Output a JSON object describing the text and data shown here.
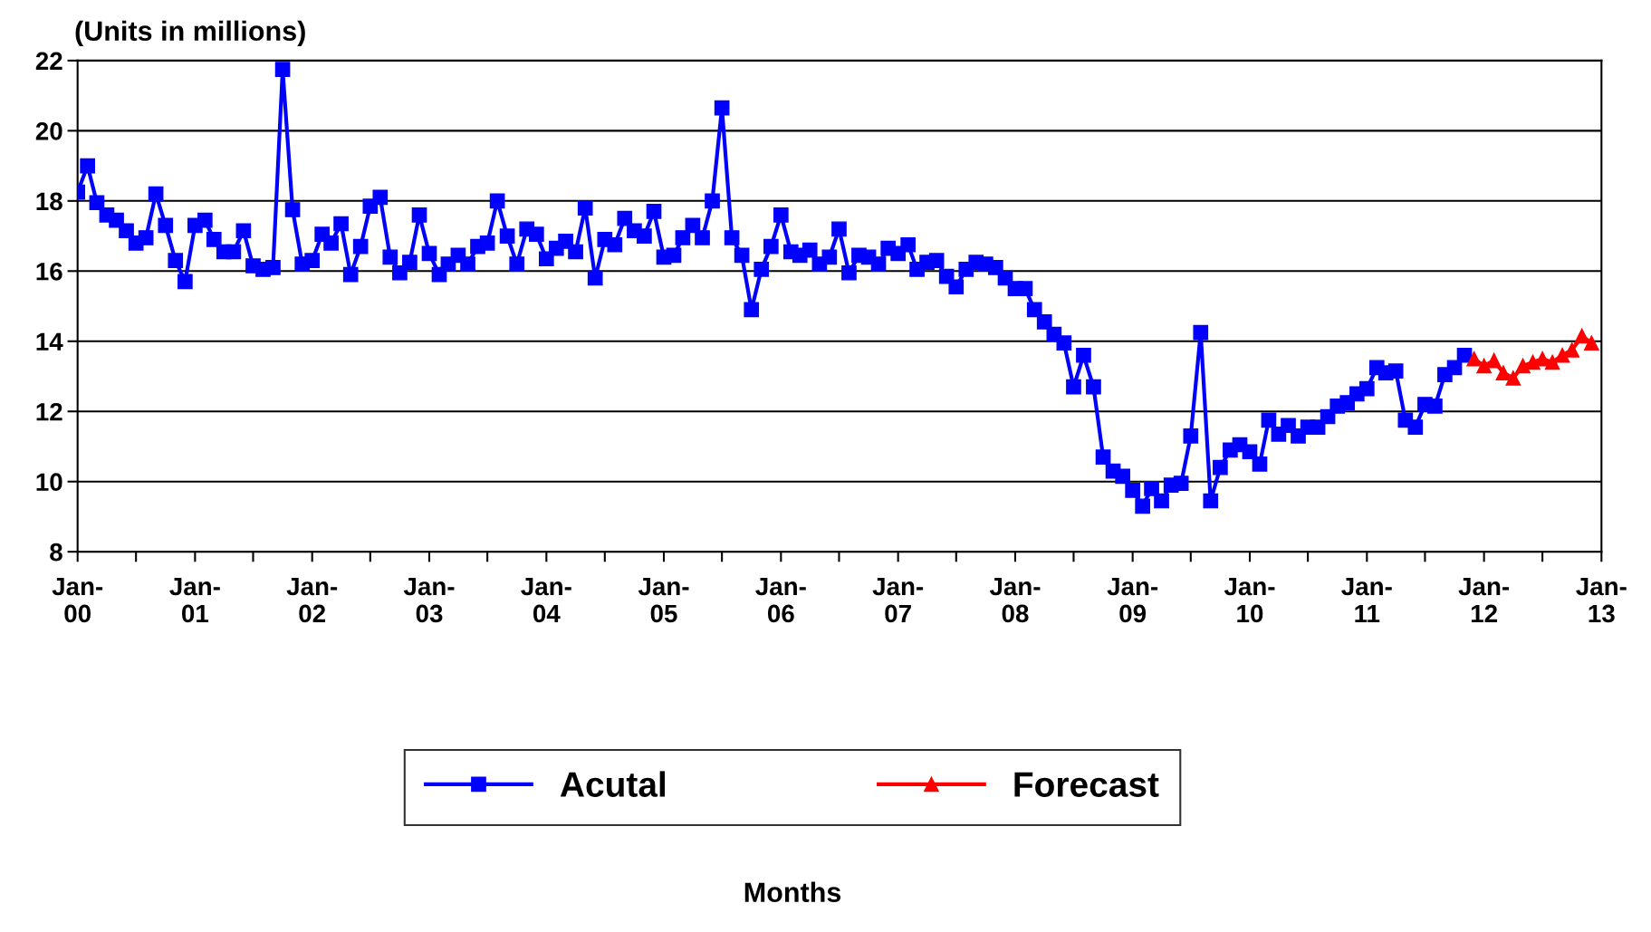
{
  "chart_data": {
    "type": "line",
    "ylabel": "(Units in millions)",
    "annotations": [
      "Months"
    ],
    "xlim": [
      "2000-01",
      "2013-01"
    ],
    "ylim": [
      8,
      22
    ],
    "yticks": [
      8,
      10,
      12,
      14,
      16,
      18,
      20,
      22
    ],
    "xticks": [
      {
        "value": "2000-01",
        "label": "Jan-\n00"
      },
      {
        "value": "2000-07",
        "label": null
      },
      {
        "value": "2001-01",
        "label": "Jan-\n01"
      },
      {
        "value": "2001-07",
        "label": null
      },
      {
        "value": "2002-01",
        "label": "Jan-\n02"
      },
      {
        "value": "2002-07",
        "label": null
      },
      {
        "value": "2003-01",
        "label": "Jan-\n03"
      },
      {
        "value": "2003-07",
        "label": null
      },
      {
        "value": "2004-01",
        "label": "Jan-\n04"
      },
      {
        "value": "2004-07",
        "label": null
      },
      {
        "value": "2005-01",
        "label": "Jan-\n05"
      },
      {
        "value": "2005-07",
        "label": null
      },
      {
        "value": "2006-01",
        "label": "Jan-\n06"
      },
      {
        "value": "2006-07",
        "label": null
      },
      {
        "value": "2007-01",
        "label": "Jan-\n07"
      },
      {
        "value": "2007-07",
        "label": null
      },
      {
        "value": "2008-01",
        "label": "Jan-\n08"
      },
      {
        "value": "2008-07",
        "label": null
      },
      {
        "value": "2009-01",
        "label": "Jan-\n09"
      },
      {
        "value": "2009-07",
        "label": null
      },
      {
        "value": "2010-01",
        "label": "Jan-\n10"
      },
      {
        "value": "2010-07",
        "label": null
      },
      {
        "value": "2011-01",
        "label": "Jan-\n11"
      },
      {
        "value": "2011-07",
        "label": null
      },
      {
        "value": "2012-01",
        "label": "Jan-\n12"
      },
      {
        "value": "2012-07",
        "label": null
      },
      {
        "value": "2013-01",
        "label": "Jan-\n13"
      }
    ],
    "grid": "y",
    "legend": "bottom",
    "series": [
      {
        "name": "Acutal",
        "color": "#0000ff",
        "marker": "square",
        "x": [
          "2000-01",
          "2000-02",
          "2000-03",
          "2000-04",
          "2000-05",
          "2000-06",
          "2000-07",
          "2000-08",
          "2000-09",
          "2000-10",
          "2000-11",
          "2000-12",
          "2001-01",
          "2001-02",
          "2001-03",
          "2001-04",
          "2001-05",
          "2001-06",
          "2001-07",
          "2001-08",
          "2001-09",
          "2001-10",
          "2001-11",
          "2001-12",
          "2002-01",
          "2002-02",
          "2002-03",
          "2002-04",
          "2002-05",
          "2002-06",
          "2002-07",
          "2002-08",
          "2002-09",
          "2002-10",
          "2002-11",
          "2002-12",
          "2003-01",
          "2003-02",
          "2003-03",
          "2003-04",
          "2003-05",
          "2003-06",
          "2003-07",
          "2003-08",
          "2003-09",
          "2003-10",
          "2003-11",
          "2003-12",
          "2004-01",
          "2004-02",
          "2004-03",
          "2004-04",
          "2004-05",
          "2004-06",
          "2004-07",
          "2004-08",
          "2004-09",
          "2004-10",
          "2004-11",
          "2004-12",
          "2005-01",
          "2005-02",
          "2005-03",
          "2005-04",
          "2005-05",
          "2005-06",
          "2005-07",
          "2005-08",
          "2005-09",
          "2005-10",
          "2005-11",
          "2005-12",
          "2006-01",
          "2006-02",
          "2006-03",
          "2006-04",
          "2006-05",
          "2006-06",
          "2006-07",
          "2006-08",
          "2006-09",
          "2006-10",
          "2006-11",
          "2006-12",
          "2007-01",
          "2007-02",
          "2007-03",
          "2007-04",
          "2007-05",
          "2007-06",
          "2007-07",
          "2007-08",
          "2007-09",
          "2007-10",
          "2007-11",
          "2007-12",
          "2008-01",
          "2008-02",
          "2008-03",
          "2008-04",
          "2008-05",
          "2008-06",
          "2008-07",
          "2008-08",
          "2008-09",
          "2008-10",
          "2008-11",
          "2008-12",
          "2009-01",
          "2009-02",
          "2009-03",
          "2009-04",
          "2009-05",
          "2009-06",
          "2009-07",
          "2009-08",
          "2009-09",
          "2009-10",
          "2009-11",
          "2009-12",
          "2010-01",
          "2010-02",
          "2010-03",
          "2010-04",
          "2010-05",
          "2010-06",
          "2010-07",
          "2010-08",
          "2010-09",
          "2010-10",
          "2010-11",
          "2010-12",
          "2011-01",
          "2011-02",
          "2011-03",
          "2011-04",
          "2011-05",
          "2011-06",
          "2011-07",
          "2011-08",
          "2011-09",
          "2011-10",
          "2011-11"
        ],
        "values": [
          18.25,
          19.0,
          17.95,
          17.6,
          17.45,
          17.15,
          16.8,
          16.95,
          18.2,
          17.3,
          16.3,
          15.7,
          17.3,
          17.45,
          16.9,
          16.55,
          16.55,
          17.15,
          16.15,
          16.05,
          16.1,
          21.75,
          17.75,
          16.2,
          16.3,
          17.05,
          16.8,
          17.35,
          15.9,
          16.7,
          17.85,
          18.1,
          16.4,
          15.95,
          16.25,
          17.6,
          16.5,
          15.9,
          16.2,
          16.45,
          16.2,
          16.7,
          16.8,
          18.0,
          17.0,
          16.2,
          17.2,
          17.05,
          16.35,
          16.65,
          16.85,
          16.55,
          17.8,
          15.8,
          16.9,
          16.75,
          17.5,
          17.15,
          17.0,
          17.7,
          16.4,
          16.45,
          16.95,
          17.3,
          16.95,
          18.0,
          20.65,
          16.95,
          16.45,
          14.9,
          16.05,
          16.7,
          17.6,
          16.55,
          16.45,
          16.6,
          16.2,
          16.4,
          17.2,
          15.95,
          16.45,
          16.4,
          16.2,
          16.65,
          16.5,
          16.75,
          16.05,
          16.25,
          16.3,
          15.85,
          15.55,
          16.05,
          16.25,
          16.2,
          16.1,
          15.8,
          15.5,
          15.5,
          14.9,
          14.55,
          14.2,
          13.95,
          12.7,
          13.6,
          12.7,
          10.7,
          10.3,
          10.15,
          9.75,
          9.3,
          9.8,
          9.45,
          9.9,
          9.95,
          11.3,
          14.25,
          9.45,
          10.4,
          10.9,
          11.05,
          10.85,
          10.5,
          11.75,
          11.35,
          11.6,
          11.3,
          11.55,
          11.55,
          11.85,
          12.15,
          12.25,
          12.5,
          12.65,
          13.25,
          13.1,
          13.15,
          11.75,
          11.55,
          12.2,
          12.15,
          13.05,
          13.25,
          13.6
        ]
      },
      {
        "name": "Forecast",
        "color": "#ff0000",
        "marker": "triangle",
        "x": [
          "2011-12",
          "2012-01",
          "2012-02",
          "2012-03",
          "2012-04",
          "2012-05",
          "2012-06",
          "2012-07",
          "2012-08",
          "2012-09",
          "2012-10",
          "2012-11",
          "2012-12"
        ],
        "values": [
          13.5,
          13.3,
          13.45,
          13.1,
          12.95,
          13.3,
          13.4,
          13.5,
          13.4,
          13.6,
          13.75,
          14.15,
          13.95
        ]
      }
    ]
  }
}
